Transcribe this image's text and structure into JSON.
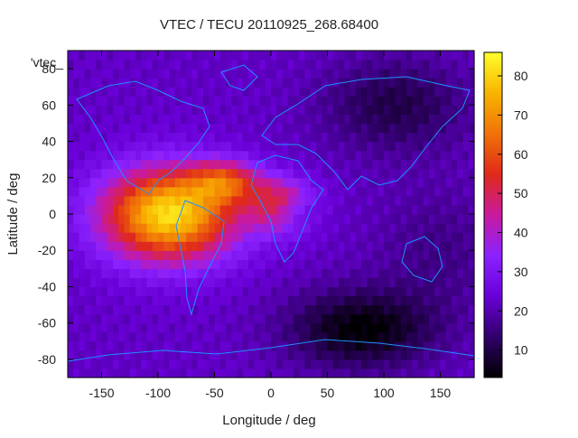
{
  "chart_data": {
    "type": "heatmap",
    "title": "VTEC / TECU 20110925_268.68400",
    "key_label": "'vtec_",
    "xlabel": "Longitude / deg",
    "ylabel": "Latitude / deg",
    "xlim": [
      -180,
      180
    ],
    "ylim": [
      -90,
      90
    ],
    "x_ticks": [
      -150,
      -100,
      -50,
      0,
      50,
      100,
      150
    ],
    "y_ticks": [
      -80,
      -60,
      -40,
      -20,
      0,
      20,
      40,
      60,
      80
    ],
    "colorbar": {
      "range": [
        3,
        86
      ],
      "ticks": [
        10,
        20,
        30,
        40,
        50,
        60,
        70,
        80
      ],
      "stops": [
        "#000000",
        "#30006a",
        "#6a00d8",
        "#8a22ff",
        "#c81a9e",
        "#e02a1a",
        "#f07208",
        "#f8b400",
        "#ffff2a"
      ]
    },
    "grid_resolution_deg": 5,
    "features": {
      "background_vtec": 22,
      "high_ionosphere_blob_americas_atlantic": {
        "lon_center": -90,
        "lat_center": 0,
        "peak_vtec": 85
      },
      "secondary_blob_africa": {
        "lon_center": 10,
        "lat_center": 5,
        "peak_vtec": 60
      },
      "low_region_south_indian_ocean": {
        "lon_center": 80,
        "lat_center": -63,
        "min_vtec": 3
      },
      "low_region_north_asia": {
        "lon_center": 110,
        "lat_center": 60,
        "min_vtec": 10
      }
    }
  }
}
